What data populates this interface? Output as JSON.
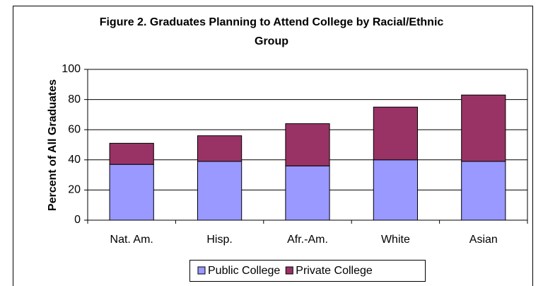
{
  "chart_data": {
    "type": "stacked_bar",
    "title": "Figure 2. Graduates Planning to Attend College by Racial/Ethnic Group",
    "y_label": "Percent of All Graduates",
    "categories": [
      "Nat. Am.",
      "Hisp.",
      "Afr.-Am.",
      "White",
      "Asian"
    ],
    "series": [
      {
        "name": "Public College",
        "color": "#9999ff",
        "values": [
          37,
          39,
          36,
          40,
          39
        ]
      },
      {
        "name": "Private College",
        "color": "#993366",
        "values": [
          14,
          17,
          28,
          35,
          44
        ]
      }
    ],
    "ylim": [
      0,
      100
    ],
    "yticks": [
      0,
      20,
      40,
      60,
      80,
      100
    ],
    "grid": true,
    "legend": "bottom"
  }
}
